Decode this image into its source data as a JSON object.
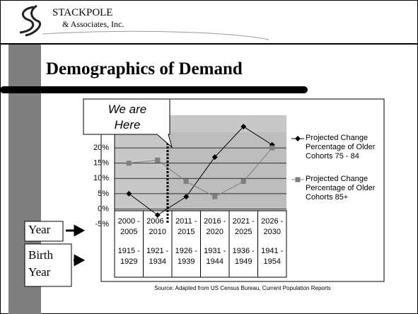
{
  "logo": {
    "name": "STACKPOLE",
    "tagline": "& Associates, Inc."
  },
  "slide": {
    "title": "Demographics of Demand",
    "row_labels": [
      "Year",
      "Birth Year"
    ],
    "source": "Source: Adapted from US Census Bureau, Current Population Reports"
  },
  "chart_data": {
    "type": "line",
    "annotation": "We are Here",
    "categories": [
      "2000 - 2005",
      "2006 - 2010",
      "2011 - 2015",
      "2016 - 2020",
      "2021 - 2025",
      "2026 - 2030"
    ],
    "birth_years": [
      "1915 - 1929",
      "1921 - 1934",
      "1926 - 1939",
      "1931 - 1944",
      "1936 - 1949",
      "1941 - 1954"
    ],
    "series": [
      {
        "name": "Projected Change Percentage of Older Cohorts 75 - 84",
        "color": "#000000",
        "marker": "diamond",
        "values": [
          5,
          -2,
          4,
          17,
          27,
          21
        ]
      },
      {
        "name": "Projected Change Percentage of Older Cohorts 85+",
        "color": "#7f7f7f",
        "marker": "square",
        "values": [
          15,
          16,
          9,
          4,
          9,
          20
        ]
      }
    ],
    "ylim": [
      -5,
      30
    ],
    "yticks": [
      {
        "value": -5,
        "label": "-5%"
      },
      {
        "value": 0,
        "label": "0%"
      },
      {
        "value": 5,
        "label": "5%"
      },
      {
        "value": 10,
        "label": "10%"
      },
      {
        "value": 15,
        "label": "15%"
      },
      {
        "value": 20,
        "label": "20%"
      }
    ],
    "grid": true
  }
}
